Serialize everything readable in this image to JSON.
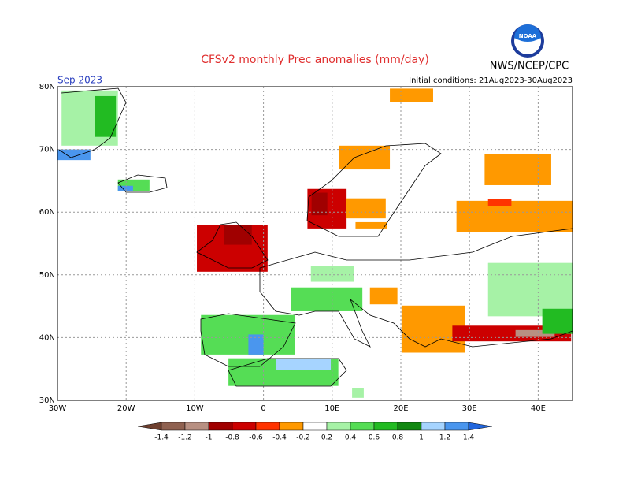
{
  "map": {
    "title": "CFSv2 monthly Prec anomalies (mm/day)",
    "month": "Sep 2023",
    "initial_conditions": "Initial conditions: 21Aug2023-30Aug2023",
    "source": "NWS/NCEP/CPC",
    "logo": "NOAA",
    "xlim": [
      -30,
      45
    ],
    "ylim": [
      30,
      80
    ],
    "xticks": [
      {
        "value": -30,
        "label": "30W"
      },
      {
        "value": -20,
        "label": "20W"
      },
      {
        "value": -10,
        "label": "10W"
      },
      0,
      {
        "value": 10,
        "label": "10E"
      },
      {
        "value": 20,
        "label": "20E"
      },
      {
        "value": 30,
        "label": "30E"
      },
      {
        "value": 40,
        "label": "40E"
      }
    ],
    "yticks": [
      {
        "value": 30,
        "label": "30N"
      },
      {
        "value": 40,
        "label": "40N"
      },
      {
        "value": 50,
        "label": "50N"
      },
      {
        "value": 60,
        "label": "60N"
      },
      {
        "value": 70,
        "label": "70N"
      },
      {
        "value": 80,
        "label": "80N"
      }
    ],
    "colorbar": {
      "ticks": [
        -1.4,
        -1.2,
        -1,
        -0.8,
        -0.6,
        -0.4,
        -0.2,
        0.2,
        0.4,
        0.6,
        0.8,
        1,
        1.2,
        1.4
      ],
      "colors": [
        "#6e3f2e",
        "#8f6150",
        "#b89082",
        "#a00000",
        "#cc0000",
        "#ff3300",
        "#ff9900",
        "#ffffff",
        "#a6f2a6",
        "#55dd55",
        "#22bb22",
        "#118811",
        "#a6d4ff",
        "#4a96ee",
        "#2266dd"
      ]
    },
    "cells": [
      [
        -29.4,
        70.6,
        -21.2,
        79.4,
        0.3
      ],
      [
        -24.5,
        72,
        -21.5,
        78.5,
        0.6
      ],
      [
        -30,
        68.3,
        -25.2,
        70,
        1.3
      ],
      [
        -21.2,
        63.3,
        -16.6,
        65.2,
        0.5
      ],
      [
        -21.2,
        63.3,
        -19,
        64.2,
        1.3
      ],
      [
        11,
        66.8,
        18.4,
        70.6,
        -0.3
      ],
      [
        6.4,
        57.4,
        12.1,
        63.7,
        -0.7
      ],
      [
        7,
        59.5,
        9.3,
        63.1,
        -0.9
      ],
      [
        12,
        59,
        17.8,
        62.2,
        -0.3
      ],
      [
        13.4,
        57.4,
        18,
        58.4,
        -0.3
      ],
      [
        28.1,
        56.8,
        45,
        61.8,
        -0.3
      ],
      [
        32.7,
        61,
        36.1,
        62.1,
        -0.5
      ],
      [
        32.2,
        64.3,
        41.9,
        69.3,
        -0.3
      ],
      [
        18.4,
        77.5,
        24.7,
        79.7,
        -0.3
      ],
      [
        -9.7,
        50.5,
        0.6,
        58,
        -0.7
      ],
      [
        -5.7,
        54.8,
        -1.7,
        58,
        -0.9
      ],
      [
        -9.1,
        37.3,
        4.6,
        43.6,
        0.5
      ],
      [
        -2.2,
        37.3,
        0,
        40.5,
        1.3
      ],
      [
        -5.1,
        32.3,
        10.9,
        36.7,
        0.5
      ],
      [
        1.8,
        34.8,
        9.8,
        36.7,
        1.1
      ],
      [
        4,
        44.2,
        14.4,
        48,
        0.5
      ],
      [
        6.9,
        48.9,
        13.2,
        51.4,
        0.3
      ],
      [
        15.5,
        45.3,
        19.5,
        48,
        -0.3
      ],
      [
        20.1,
        37.6,
        29.3,
        45.1,
        -0.3
      ],
      [
        27.5,
        39.4,
        44.8,
        41.9,
        -0.7
      ],
      [
        36.7,
        40.1,
        42.4,
        41.2,
        -1.1
      ],
      [
        32.7,
        43.4,
        45,
        51.9,
        0.3
      ],
      [
        40.6,
        40.6,
        45,
        44.6,
        0.6
      ],
      [
        12.9,
        30.4,
        14.6,
        32,
        0.3
      ]
    ]
  }
}
